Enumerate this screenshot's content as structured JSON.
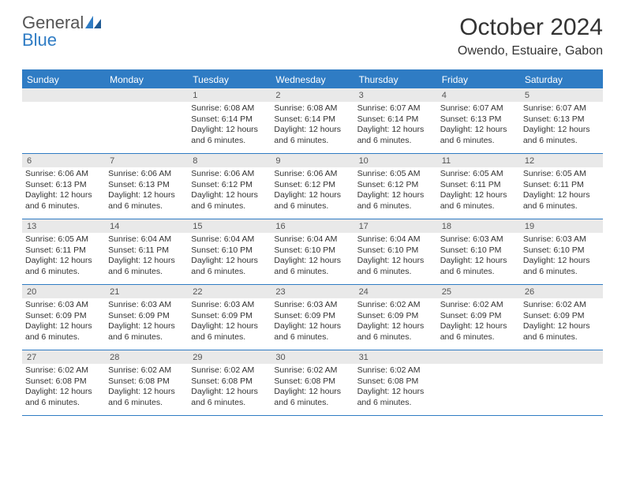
{
  "logo": {
    "word1": "General",
    "word2": "Blue"
  },
  "title": "October 2024",
  "location": "Owendo, Estuaire, Gabon",
  "colors": {
    "accent": "#2f7cc4",
    "header_bg": "#2f7cc4",
    "daynum_bg": "#e9e9e9",
    "text": "#333333",
    "logo_gray": "#555555"
  },
  "day_names": [
    "Sunday",
    "Monday",
    "Tuesday",
    "Wednesday",
    "Thursday",
    "Friday",
    "Saturday"
  ],
  "weeks": [
    [
      {
        "n": "",
        "sr": "",
        "ss": "",
        "dl": ""
      },
      {
        "n": "",
        "sr": "",
        "ss": "",
        "dl": ""
      },
      {
        "n": "1",
        "sr": "Sunrise: 6:08 AM",
        "ss": "Sunset: 6:14 PM",
        "dl": "Daylight: 12 hours and 6 minutes."
      },
      {
        "n": "2",
        "sr": "Sunrise: 6:08 AM",
        "ss": "Sunset: 6:14 PM",
        "dl": "Daylight: 12 hours and 6 minutes."
      },
      {
        "n": "3",
        "sr": "Sunrise: 6:07 AM",
        "ss": "Sunset: 6:14 PM",
        "dl": "Daylight: 12 hours and 6 minutes."
      },
      {
        "n": "4",
        "sr": "Sunrise: 6:07 AM",
        "ss": "Sunset: 6:13 PM",
        "dl": "Daylight: 12 hours and 6 minutes."
      },
      {
        "n": "5",
        "sr": "Sunrise: 6:07 AM",
        "ss": "Sunset: 6:13 PM",
        "dl": "Daylight: 12 hours and 6 minutes."
      }
    ],
    [
      {
        "n": "6",
        "sr": "Sunrise: 6:06 AM",
        "ss": "Sunset: 6:13 PM",
        "dl": "Daylight: 12 hours and 6 minutes."
      },
      {
        "n": "7",
        "sr": "Sunrise: 6:06 AM",
        "ss": "Sunset: 6:13 PM",
        "dl": "Daylight: 12 hours and 6 minutes."
      },
      {
        "n": "8",
        "sr": "Sunrise: 6:06 AM",
        "ss": "Sunset: 6:12 PM",
        "dl": "Daylight: 12 hours and 6 minutes."
      },
      {
        "n": "9",
        "sr": "Sunrise: 6:06 AM",
        "ss": "Sunset: 6:12 PM",
        "dl": "Daylight: 12 hours and 6 minutes."
      },
      {
        "n": "10",
        "sr": "Sunrise: 6:05 AM",
        "ss": "Sunset: 6:12 PM",
        "dl": "Daylight: 12 hours and 6 minutes."
      },
      {
        "n": "11",
        "sr": "Sunrise: 6:05 AM",
        "ss": "Sunset: 6:11 PM",
        "dl": "Daylight: 12 hours and 6 minutes."
      },
      {
        "n": "12",
        "sr": "Sunrise: 6:05 AM",
        "ss": "Sunset: 6:11 PM",
        "dl": "Daylight: 12 hours and 6 minutes."
      }
    ],
    [
      {
        "n": "13",
        "sr": "Sunrise: 6:05 AM",
        "ss": "Sunset: 6:11 PM",
        "dl": "Daylight: 12 hours and 6 minutes."
      },
      {
        "n": "14",
        "sr": "Sunrise: 6:04 AM",
        "ss": "Sunset: 6:11 PM",
        "dl": "Daylight: 12 hours and 6 minutes."
      },
      {
        "n": "15",
        "sr": "Sunrise: 6:04 AM",
        "ss": "Sunset: 6:10 PM",
        "dl": "Daylight: 12 hours and 6 minutes."
      },
      {
        "n": "16",
        "sr": "Sunrise: 6:04 AM",
        "ss": "Sunset: 6:10 PM",
        "dl": "Daylight: 12 hours and 6 minutes."
      },
      {
        "n": "17",
        "sr": "Sunrise: 6:04 AM",
        "ss": "Sunset: 6:10 PM",
        "dl": "Daylight: 12 hours and 6 minutes."
      },
      {
        "n": "18",
        "sr": "Sunrise: 6:03 AM",
        "ss": "Sunset: 6:10 PM",
        "dl": "Daylight: 12 hours and 6 minutes."
      },
      {
        "n": "19",
        "sr": "Sunrise: 6:03 AM",
        "ss": "Sunset: 6:10 PM",
        "dl": "Daylight: 12 hours and 6 minutes."
      }
    ],
    [
      {
        "n": "20",
        "sr": "Sunrise: 6:03 AM",
        "ss": "Sunset: 6:09 PM",
        "dl": "Daylight: 12 hours and 6 minutes."
      },
      {
        "n": "21",
        "sr": "Sunrise: 6:03 AM",
        "ss": "Sunset: 6:09 PM",
        "dl": "Daylight: 12 hours and 6 minutes."
      },
      {
        "n": "22",
        "sr": "Sunrise: 6:03 AM",
        "ss": "Sunset: 6:09 PM",
        "dl": "Daylight: 12 hours and 6 minutes."
      },
      {
        "n": "23",
        "sr": "Sunrise: 6:03 AM",
        "ss": "Sunset: 6:09 PM",
        "dl": "Daylight: 12 hours and 6 minutes."
      },
      {
        "n": "24",
        "sr": "Sunrise: 6:02 AM",
        "ss": "Sunset: 6:09 PM",
        "dl": "Daylight: 12 hours and 6 minutes."
      },
      {
        "n": "25",
        "sr": "Sunrise: 6:02 AM",
        "ss": "Sunset: 6:09 PM",
        "dl": "Daylight: 12 hours and 6 minutes."
      },
      {
        "n": "26",
        "sr": "Sunrise: 6:02 AM",
        "ss": "Sunset: 6:09 PM",
        "dl": "Daylight: 12 hours and 6 minutes."
      }
    ],
    [
      {
        "n": "27",
        "sr": "Sunrise: 6:02 AM",
        "ss": "Sunset: 6:08 PM",
        "dl": "Daylight: 12 hours and 6 minutes."
      },
      {
        "n": "28",
        "sr": "Sunrise: 6:02 AM",
        "ss": "Sunset: 6:08 PM",
        "dl": "Daylight: 12 hours and 6 minutes."
      },
      {
        "n": "29",
        "sr": "Sunrise: 6:02 AM",
        "ss": "Sunset: 6:08 PM",
        "dl": "Daylight: 12 hours and 6 minutes."
      },
      {
        "n": "30",
        "sr": "Sunrise: 6:02 AM",
        "ss": "Sunset: 6:08 PM",
        "dl": "Daylight: 12 hours and 6 minutes."
      },
      {
        "n": "31",
        "sr": "Sunrise: 6:02 AM",
        "ss": "Sunset: 6:08 PM",
        "dl": "Daylight: 12 hours and 6 minutes."
      },
      {
        "n": "",
        "sr": "",
        "ss": "",
        "dl": ""
      },
      {
        "n": "",
        "sr": "",
        "ss": "",
        "dl": ""
      }
    ]
  ]
}
